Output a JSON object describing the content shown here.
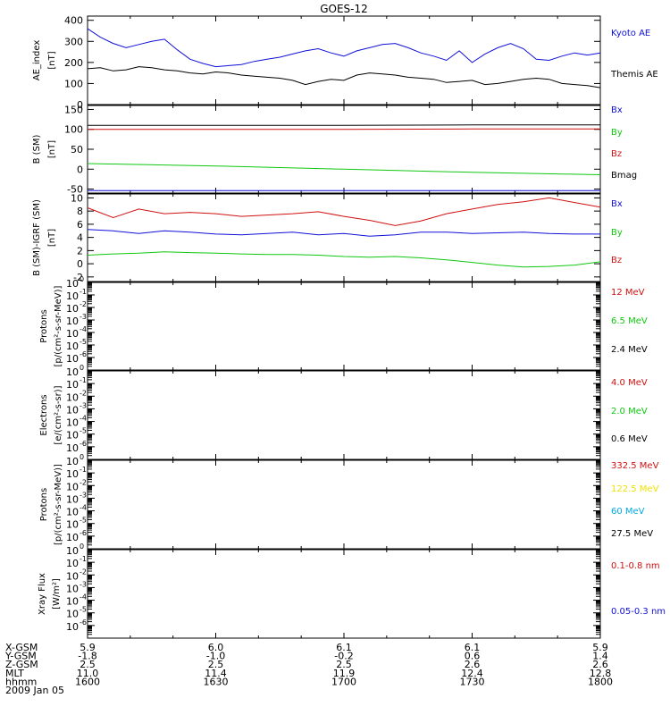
{
  "title": "GOES-12",
  "colors": {
    "blue": "#1010d8",
    "red": "#d01010",
    "green": "#10c810",
    "black": "#000000",
    "yellow": "#f0e000",
    "cyan": "#00a8e8"
  },
  "chart_data": [
    {
      "type": "line",
      "ylabel": [
        "AE_index",
        "[nT]"
      ],
      "ylim": [
        0,
        420
      ],
      "yticks": [
        0,
        100,
        200,
        300,
        400
      ],
      "series": [
        {
          "name": "Kyoto AE",
          "color": "blue",
          "x": [
            1600,
            1603,
            1606,
            1609,
            1612,
            1615,
            1618,
            1621,
            1624,
            1627,
            1630,
            1633,
            1636,
            1639,
            1642,
            1645,
            1648,
            1651,
            1654,
            1657,
            1700,
            1703,
            1706,
            1709,
            1712,
            1715,
            1718,
            1721,
            1724,
            1727,
            1730,
            1733,
            1736,
            1739,
            1742,
            1745,
            1748,
            1751,
            1754,
            1757,
            1800
          ],
          "values": [
            360,
            320,
            290,
            270,
            285,
            300,
            310,
            260,
            215,
            195,
            180,
            185,
            190,
            205,
            215,
            225,
            240,
            255,
            265,
            245,
            230,
            255,
            270,
            285,
            290,
            270,
            245,
            230,
            210,
            255,
            200,
            240,
            270,
            290,
            265,
            215,
            210,
            230,
            245,
            235,
            245
          ]
        },
        {
          "name": "Themis AE",
          "color": "black",
          "x": [
            1600,
            1603,
            1606,
            1609,
            1612,
            1615,
            1618,
            1621,
            1624,
            1627,
            1630,
            1633,
            1636,
            1639,
            1642,
            1645,
            1648,
            1651,
            1654,
            1657,
            1700,
            1703,
            1706,
            1709,
            1712,
            1715,
            1718,
            1721,
            1724,
            1727,
            1730,
            1733,
            1736,
            1739,
            1742,
            1745,
            1748,
            1751,
            1754,
            1757,
            1800
          ],
          "values": [
            170,
            175,
            160,
            165,
            180,
            175,
            165,
            160,
            150,
            145,
            155,
            150,
            140,
            135,
            130,
            125,
            115,
            95,
            110,
            120,
            115,
            140,
            150,
            145,
            140,
            130,
            125,
            120,
            105,
            110,
            115,
            95,
            100,
            110,
            120,
            125,
            120,
            100,
            95,
            90,
            80
          ]
        }
      ]
    },
    {
      "type": "line",
      "ylabel": [
        "B (SM)",
        "[nT]"
      ],
      "ylim": [
        -60,
        160
      ],
      "yticks": [
        -50,
        0,
        50,
        100,
        150
      ],
      "series": [
        {
          "name": "Bx",
          "color": "blue",
          "x": [
            1600,
            1630,
            1700,
            1730,
            1800
          ],
          "values": [
            -54,
            -54,
            -54,
            -54,
            -54
          ]
        },
        {
          "name": "By",
          "color": "green",
          "x": [
            1600,
            1630,
            1700,
            1730,
            1800
          ],
          "values": [
            14,
            8,
            0,
            -8,
            -14
          ]
        },
        {
          "name": "Bz",
          "color": "red",
          "x": [
            1600,
            1630,
            1700,
            1730,
            1800
          ],
          "values": [
            100,
            100,
            100,
            101,
            101
          ]
        },
        {
          "name": "Bmag",
          "color": "black",
          "x": [
            1600,
            1630,
            1700,
            1730,
            1800
          ],
          "values": [
            110,
            110,
            110,
            111,
            111
          ]
        }
      ]
    },
    {
      "type": "line",
      "ylabel": [
        "B (SM)-IGRF (SM)",
        "[nT]"
      ],
      "ylim": [
        -2.7,
        10.6
      ],
      "yticks": [
        -2,
        0,
        2,
        4,
        6,
        8,
        10
      ],
      "series": [
        {
          "name": "Bx",
          "color": "blue",
          "x": [
            1600,
            1606,
            1612,
            1618,
            1624,
            1630,
            1636,
            1642,
            1648,
            1654,
            1700,
            1706,
            1712,
            1718,
            1724,
            1730,
            1736,
            1742,
            1748,
            1754,
            1800
          ],
          "values": [
            5.2,
            5.0,
            4.6,
            5.0,
            4.8,
            4.5,
            4.4,
            4.6,
            4.8,
            4.4,
            4.6,
            4.2,
            4.4,
            4.8,
            4.8,
            4.6,
            4.7,
            4.8,
            4.6,
            4.5,
            4.5
          ]
        },
        {
          "name": "By",
          "color": "green",
          "x": [
            1600,
            1606,
            1612,
            1618,
            1624,
            1630,
            1636,
            1642,
            1648,
            1654,
            1700,
            1706,
            1712,
            1718,
            1724,
            1730,
            1736,
            1742,
            1748,
            1754,
            1800
          ],
          "values": [
            1.3,
            1.5,
            1.6,
            1.8,
            1.7,
            1.6,
            1.5,
            1.4,
            1.4,
            1.3,
            1.1,
            1.0,
            1.1,
            0.9,
            0.6,
            0.2,
            -0.2,
            -0.5,
            -0.4,
            -0.2,
            0.3
          ]
        },
        {
          "name": "Bz",
          "color": "red",
          "x": [
            1600,
            1606,
            1612,
            1618,
            1624,
            1630,
            1636,
            1642,
            1648,
            1654,
            1700,
            1706,
            1712,
            1718,
            1724,
            1730,
            1736,
            1742,
            1748,
            1754,
            1800
          ],
          "values": [
            8.5,
            7.0,
            8.3,
            7.6,
            7.8,
            7.6,
            7.2,
            7.4,
            7.6,
            7.9,
            7.2,
            6.6,
            5.8,
            6.5,
            7.6,
            8.3,
            9.0,
            9.4,
            10.0,
            9.3,
            8.6
          ]
        }
      ]
    },
    {
      "type": "line",
      "ylabel": [
        "Protons",
        "[p/(cm²-s-sr-MeV)]"
      ],
      "log": true,
      "ylim_exp": [
        -7,
        0
      ],
      "yticks_exp": [
        -6,
        -5,
        -4,
        -3,
        -2,
        -1,
        0
      ],
      "series": [
        {
          "name": "12 MeV",
          "color": "red"
        },
        {
          "name": "6.5 MeV",
          "color": "green"
        },
        {
          "name": "2.4 MeV",
          "color": "black"
        }
      ]
    },
    {
      "type": "line",
      "ylabel": [
        "Electrons",
        "[e/(cm²-s-sr)]"
      ],
      "log": true,
      "ylim_exp": [
        -7,
        0
      ],
      "yticks_exp": [
        -6,
        -5,
        -4,
        -3,
        -2,
        -1,
        0
      ],
      "series": [
        {
          "name": "4.0 MeV",
          "color": "red"
        },
        {
          "name": "2.0 MeV",
          "color": "green"
        },
        {
          "name": "0.6 MeV",
          "color": "black"
        }
      ]
    },
    {
      "type": "line",
      "ylabel": [
        "Protons",
        "[p/(cm²-s-sr-MeV)]"
      ],
      "log": true,
      "ylim_exp": [
        -7,
        0
      ],
      "yticks_exp": [
        -6,
        -5,
        -4,
        -3,
        -2,
        -1,
        0
      ],
      "series": [
        {
          "name": "332.5 MeV",
          "color": "red"
        },
        {
          "name": "122.5 MeV",
          "color": "yellow"
        },
        {
          "name": "60 MeV",
          "color": "cyan"
        },
        {
          "name": "27.5 MeV",
          "color": "black"
        }
      ]
    },
    {
      "type": "line",
      "ylabel": [
        "Xray Flux",
        "[W/m²]"
      ],
      "log": true,
      "ylim_exp": [
        -7,
        0
      ],
      "yticks_exp": [
        -6,
        -5,
        -4,
        -3,
        -2,
        -1,
        0
      ],
      "series": [
        {
          "name": "0.1-0.8 nm",
          "color": "red"
        },
        {
          "name": "0.05-0.3 nm",
          "color": "blue"
        }
      ]
    }
  ],
  "xaxis": {
    "range": [
      1600,
      1800
    ],
    "rows": [
      {
        "label": "X-GSM",
        "values": [
          "5.9",
          "6.0",
          "6.1",
          "6.1",
          "5.9"
        ]
      },
      {
        "label": "Y-GSM",
        "values": [
          "-1.8",
          "-1.0",
          "-0.2",
          "0.6",
          "1.4"
        ]
      },
      {
        "label": "Z-GSM",
        "values": [
          "2.5",
          "2.5",
          "2.5",
          "2.6",
          "2.6"
        ]
      },
      {
        "label": "MLT",
        "values": [
          "11.0",
          "11.4",
          "11.9",
          "12.4",
          "12.8"
        ]
      },
      {
        "label": "hhmm",
        "values": [
          "1600",
          "1630",
          "1700",
          "1730",
          "1800"
        ]
      }
    ],
    "date": "2009 Jan 05"
  }
}
